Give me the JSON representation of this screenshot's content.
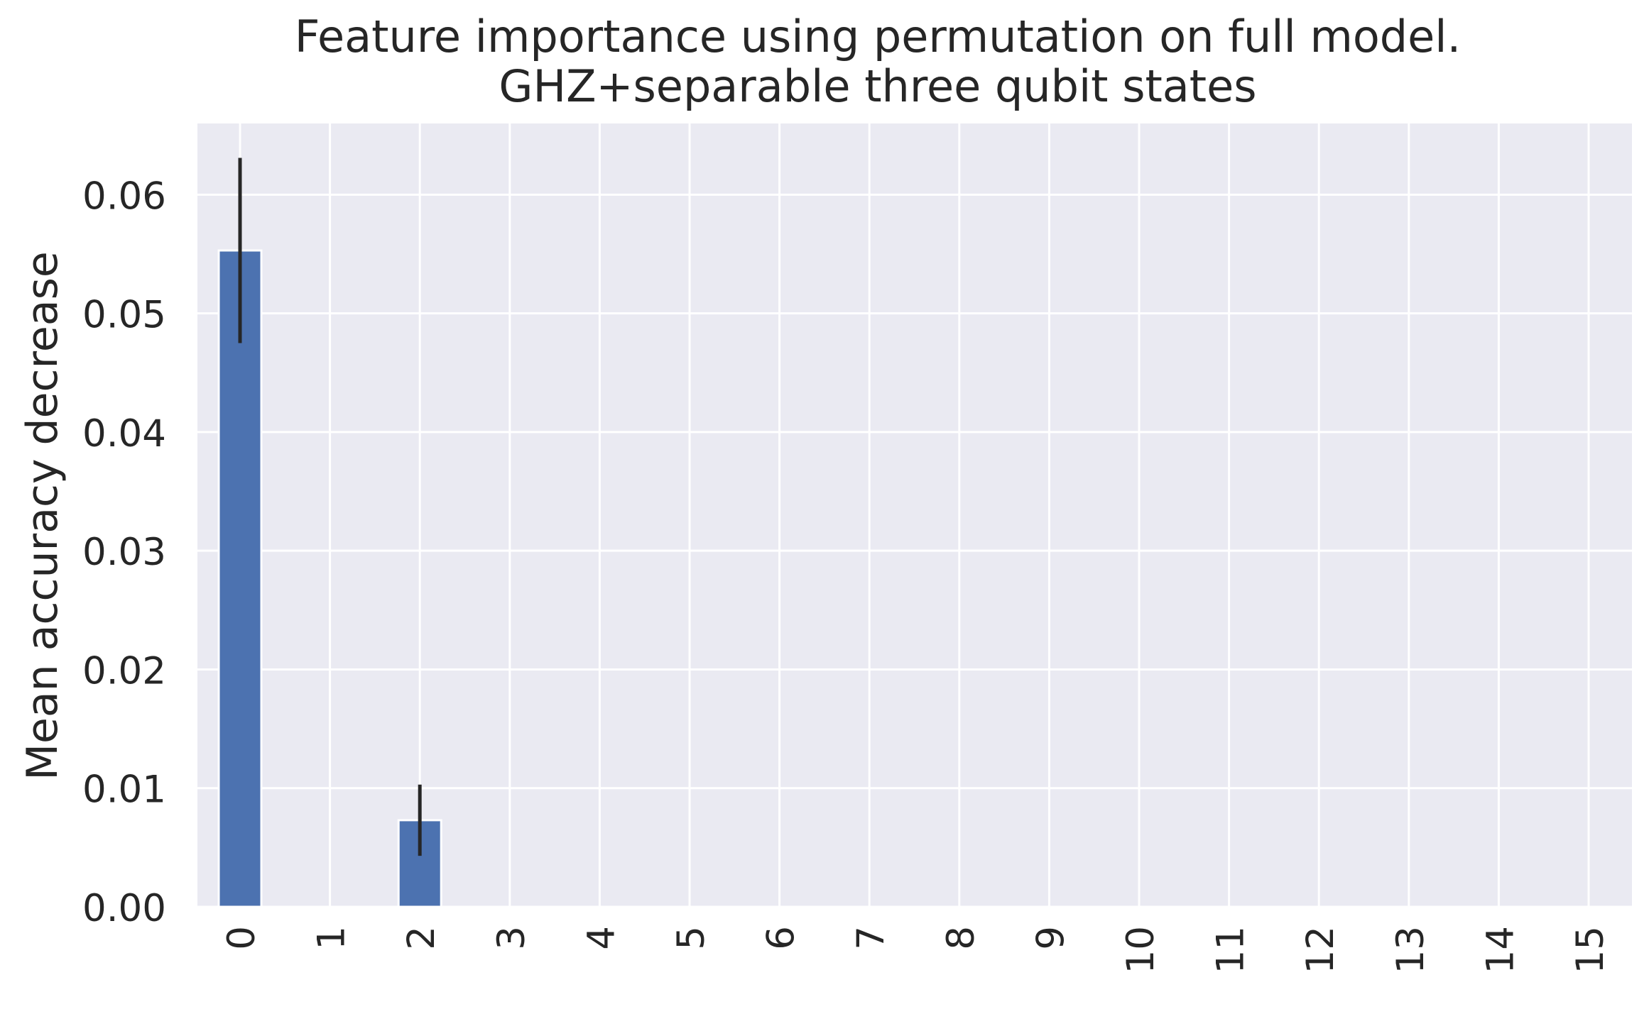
{
  "chart_data": {
    "type": "bar",
    "title": "Feature importance using permutation on full model.",
    "subtitle": "GHZ+separable three qubit states",
    "xlabel": "",
    "ylabel": "Mean accuracy decrease",
    "categories": [
      "0",
      "1",
      "2",
      "3",
      "4",
      "5",
      "6",
      "7",
      "8",
      "9",
      "10",
      "11",
      "12",
      "13",
      "14",
      "15"
    ],
    "values": [
      0.0553,
      0,
      0.0073,
      0,
      0,
      0,
      0,
      0,
      0,
      0,
      0,
      0,
      0,
      0,
      0,
      0
    ],
    "errors": [
      0.0078,
      0,
      0.003,
      0,
      0,
      0,
      0,
      0,
      0,
      0,
      0,
      0,
      0,
      0,
      0,
      0
    ],
    "ylim": [
      0,
      0.066
    ],
    "yticks": [
      "0.00",
      "0.01",
      "0.02",
      "0.03",
      "0.04",
      "0.05",
      "0.06"
    ],
    "grid": true,
    "colors": {
      "bar": "#4c72b0",
      "plot_background": "#eaeaf2",
      "grid": "#ffffff",
      "error_bar": "#262626"
    }
  }
}
